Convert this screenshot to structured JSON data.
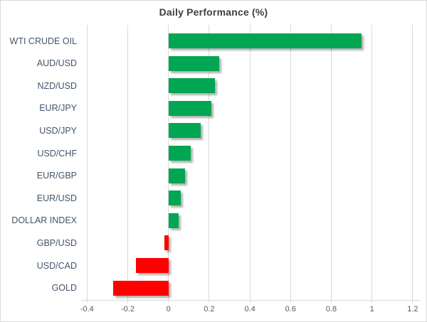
{
  "title": "Daily Performance (%)",
  "chart_data": {
    "type": "bar",
    "orientation": "horizontal",
    "title": "Daily Performance (%)",
    "categories": [
      "WTI CRUDE OIL",
      "AUD/USD",
      "NZD/USD",
      "EUR/JPY",
      "USD/JPY",
      "USD/CHF",
      "EUR/GBP",
      "EUR/USD",
      "DOLLAR INDEX",
      "GBP/USD",
      "USD/CAD",
      "GOLD"
    ],
    "values": [
      0.95,
      0.25,
      0.23,
      0.21,
      0.16,
      0.11,
      0.08,
      0.06,
      0.05,
      -0.02,
      -0.16,
      -0.27
    ],
    "xlim": [
      -0.4,
      1.2
    ],
    "xtick_labels": [
      "-0.4",
      "-0.2",
      "0",
      "0.2",
      "0.4",
      "0.6",
      "0.8",
      "1",
      "1.2"
    ],
    "xtick_values": [
      -0.4,
      -0.2,
      0,
      0.2,
      0.4,
      0.6,
      0.8,
      1,
      1.2
    ],
    "grid": "vertical",
    "legend": "none",
    "colors": {
      "positive": "#00a651",
      "negative": "#ff0000",
      "gridline": "#d9d9d9",
      "axis_tick_label": "#595959",
      "category_label": "#44546a",
      "title": "#3f3f3f"
    }
  }
}
